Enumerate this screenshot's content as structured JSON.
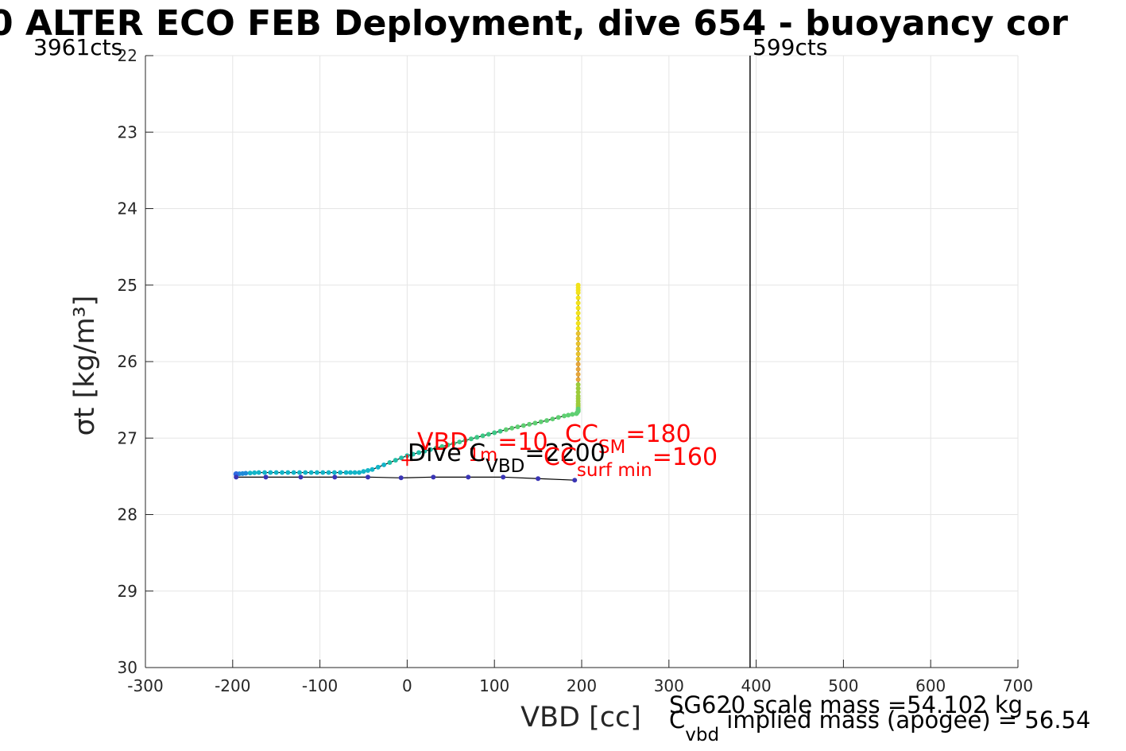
{
  "figure": {
    "title": "0 ALTER ECO FEB Deployment, dive 654 - buoyancy cor",
    "counts_left": "3961cts",
    "counts_right": "599cts",
    "annotations": {
      "vbd_main": "VBD",
      "vbd_sub": "1m",
      "vbd_val": "=10",
      "ccsm_main": "CC",
      "ccsm_sub": "SM",
      "ccsm_val": "=180",
      "dive_main": "Dive C",
      "dive_sub": "VBD",
      "dive_val": "=2200",
      "ccsurf_main": "CC",
      "ccsurf_sub": "surf min",
      "ccsurf_val": "=160",
      "scale_mass": "SG620 scale mass =54.102 kg",
      "cvbd_main": "C",
      "cvbd_sub": "vbd",
      "implied_mass": "implied mass (apogee) = 56.54"
    },
    "colors": {
      "red_annotation": "#ff0000",
      "descent_line": "#000000",
      "ascent_line": "#000000",
      "vertical_marker": "#000000",
      "gridline": "#e5e5e5"
    }
  },
  "chart_data": {
    "type": "scatter",
    "xlabel": "VBD [cc]",
    "ylabel": "σt [kg/m³]",
    "xlim": [
      -300,
      700
    ],
    "ylim": [
      22,
      30
    ],
    "y_reversed": true,
    "grid": true,
    "xticks": [
      -300,
      -200,
      -100,
      0,
      100,
      200,
      300,
      400,
      500,
      600,
      700
    ],
    "yticks": [
      22,
      23,
      24,
      25,
      26,
      27,
      28,
      29,
      30
    ],
    "vertical_marker_x": 393,
    "series": [
      {
        "kind": "descent-line",
        "x": [
          196,
          196,
          196,
          196,
          196,
          196,
          196,
          196,
          196,
          196,
          196,
          196,
          194,
          180,
          160,
          140,
          120,
          100,
          80,
          60,
          40,
          20,
          0,
          -20,
          -40,
          -55,
          -70,
          -90,
          -110,
          -130,
          -150,
          -170,
          -185,
          -196
        ],
        "y": [
          25.0,
          25.1,
          25.3,
          25.5,
          25.7,
          25.9,
          26.1,
          26.3,
          26.45,
          26.55,
          26.62,
          26.65,
          26.68,
          26.71,
          26.77,
          26.82,
          26.87,
          26.93,
          26.99,
          27.05,
          27.11,
          27.17,
          27.23,
          27.32,
          27.41,
          27.45,
          27.45,
          27.45,
          27.45,
          27.45,
          27.45,
          27.45,
          27.46,
          27.47
        ]
      },
      {
        "kind": "ascent-line",
        "x": [
          -196,
          -162,
          -122,
          -83,
          -45,
          -7,
          30,
          70,
          110,
          150,
          192
        ],
        "y": [
          27.51,
          27.51,
          27.51,
          27.51,
          27.51,
          27.52,
          27.51,
          27.51,
          27.51,
          27.53,
          27.55
        ]
      },
      {
        "kind": "marker",
        "x": [
          0
        ],
        "y": [
          27.29
        ]
      }
    ]
  }
}
